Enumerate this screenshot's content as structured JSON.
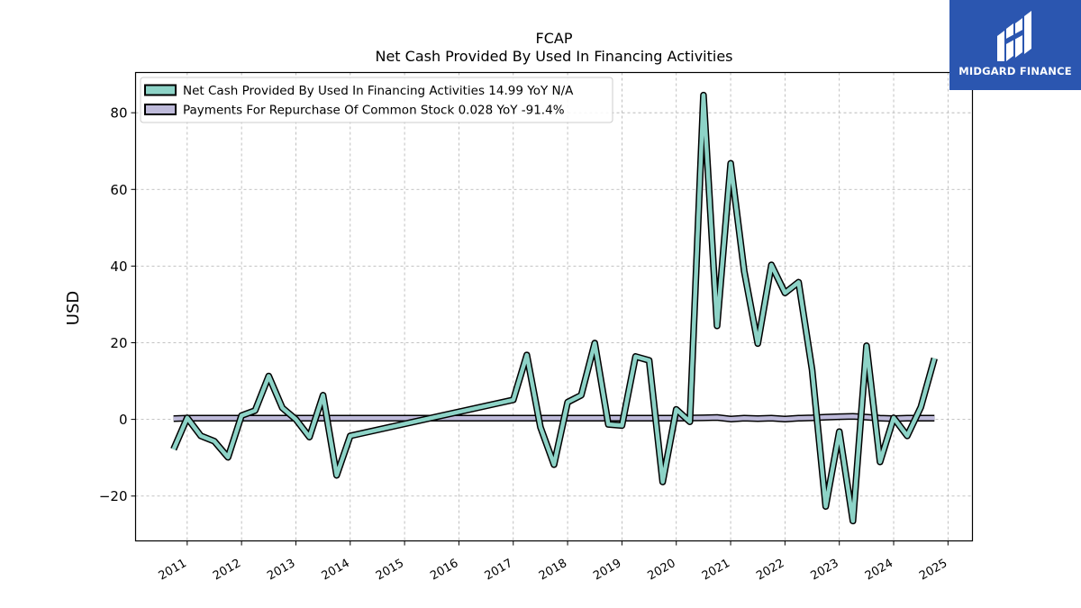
{
  "brand": {
    "name": "MIDGARD FINANCE",
    "icon": "midgard-logo-icon",
    "background": "#2b56b0"
  },
  "chart_data": {
    "type": "line",
    "title": "FCAP",
    "subtitle": "Net Cash Provided By Used In Financing Activities",
    "xlabel": "",
    "ylabel": "USD",
    "grid": true,
    "legend_position": "top-left",
    "xlim": [
      2010.05,
      2025.45
    ],
    "ylim": [
      -31.7,
      90.5
    ],
    "x_ticks": [
      2011,
      2012,
      2013,
      2014,
      2015,
      2016,
      2017,
      2018,
      2019,
      2020,
      2021,
      2022,
      2023,
      2024,
      2025
    ],
    "x_tick_labels": [
      "2011",
      "2012",
      "2013",
      "2014",
      "2015",
      "2016",
      "2017",
      "2018",
      "2019",
      "2020",
      "2021",
      "2022",
      "2023",
      "2024",
      "2025"
    ],
    "y_ticks": [
      -20,
      0,
      20,
      40,
      60,
      80
    ],
    "y_tick_labels": [
      "−20",
      "0",
      "20",
      "40",
      "60",
      "80"
    ],
    "series": [
      {
        "name": "Net Cash Provided By Used In Financing Activities",
        "legend_label": "Net Cash Provided By Used In Financing Activities  14.99 YoY N/A",
        "color": "#8dd3c7",
        "x": [
          2010.75,
          2011.0,
          2011.25,
          2011.5,
          2011.75,
          2012.0,
          2012.25,
          2012.5,
          2012.75,
          2013.0,
          2013.25,
          2013.5,
          2013.75,
          2014.0,
          2017.0,
          2017.25,
          2017.5,
          2017.75,
          2018.0,
          2018.25,
          2018.5,
          2018.75,
          2019.0,
          2019.25,
          2019.5,
          2019.75,
          2020.0,
          2020.25,
          2020.5,
          2020.75,
          2021.0,
          2021.25,
          2021.5,
          2021.75,
          2022.0,
          2022.25,
          2022.5,
          2022.75,
          2023.0,
          2023.25,
          2023.5,
          2023.75,
          2024.0,
          2024.25,
          2024.5,
          2024.75
        ],
        "y": [
          -7.8,
          0.4,
          -4.3,
          -5.7,
          -9.9,
          1.0,
          2.3,
          11.3,
          3.0,
          0.0,
          -4.6,
          6.3,
          -14.6,
          -4.3,
          5.1,
          16.8,
          -2.0,
          -11.8,
          4.5,
          6.3,
          19.9,
          -1.3,
          -1.6,
          16.4,
          15.4,
          -16.3,
          2.6,
          -0.6,
          84.6,
          24.4,
          66.8,
          38.7,
          19.8,
          40.3,
          33.0,
          35.8,
          12.9,
          -22.7,
          -3.2,
          -26.5,
          19.2,
          -11.1,
          0.4,
          -4.3,
          3.2,
          15.9
        ]
      },
      {
        "name": "Payments For Repurchase Of Common Stock",
        "legend_label": "Payments For Repurchase Of Common Stock  0.028 YoY -91.4%",
        "color": "#bebada",
        "x": [
          2010.75,
          2011.0,
          2012.0,
          2013.0,
          2014.0,
          2015.0,
          2016.0,
          2017.0,
          2018.0,
          2019.0,
          2020.0,
          2020.5,
          2020.75,
          2021.0,
          2021.25,
          2021.5,
          2021.75,
          2022.0,
          2022.25,
          2022.5,
          2022.75,
          2023.0,
          2023.25,
          2023.5,
          2023.75,
          2024.0,
          2024.25,
          2024.5,
          2024.75
        ],
        "y": [
          0.2,
          0.3,
          0.3,
          0.3,
          0.3,
          0.3,
          0.3,
          0.3,
          0.3,
          0.3,
          0.3,
          0.4,
          0.5,
          0.1,
          0.3,
          0.2,
          0.3,
          0.1,
          0.3,
          0.4,
          0.6,
          0.7,
          0.8,
          0.6,
          0.3,
          0.2,
          0.3,
          0.3,
          0.3
        ]
      }
    ]
  }
}
